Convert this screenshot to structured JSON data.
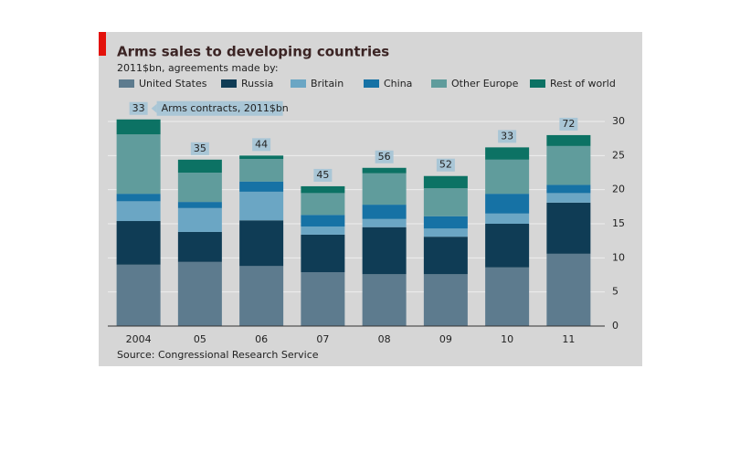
{
  "chart_data": {
    "type": "stacked_bar",
    "title": "Arms sales to developing countries",
    "subtitle": "2011$bn, agreements made by:",
    "source": "Source: Congressional Research Service",
    "annotation": "Arms contracts, 2011$bn",
    "contract_labels": [
      33,
      35,
      44,
      45,
      56,
      52,
      33,
      72
    ],
    "categories": [
      "2004",
      "05",
      "06",
      "07",
      "08",
      "09",
      "10",
      "11"
    ],
    "series": [
      {
        "name": "United States",
        "color": "#5d7b8e",
        "values": [
          9.0,
          9.4,
          8.8,
          7.9,
          7.6,
          7.6,
          8.6,
          10.6
        ]
      },
      {
        "name": "Russia",
        "color": "#0f3c55",
        "values": [
          6.4,
          4.4,
          6.7,
          5.5,
          6.9,
          5.5,
          6.4,
          7.5
        ]
      },
      {
        "name": "Britain",
        "color": "#6ba6c4",
        "values": [
          2.9,
          3.5,
          4.2,
          1.2,
          1.2,
          1.2,
          1.5,
          1.4
        ]
      },
      {
        "name": "China",
        "color": "#1672a5",
        "values": [
          1.1,
          0.9,
          1.5,
          1.7,
          2.1,
          1.8,
          2.9,
          1.2
        ]
      },
      {
        "name": "Other Europe",
        "color": "#609c9c",
        "values": [
          8.7,
          4.3,
          3.3,
          3.2,
          4.6,
          4.1,
          5.0,
          5.7
        ]
      },
      {
        "name": "Rest of world",
        "color": "#0c7264",
        "values": [
          2.2,
          1.9,
          0.5,
          1.0,
          0.8,
          1.8,
          1.8,
          1.6
        ]
      }
    ],
    "ylim": [
      0,
      30
    ],
    "yticks": [
      0,
      5,
      10,
      15,
      20,
      25,
      30
    ],
    "grid": true
  }
}
